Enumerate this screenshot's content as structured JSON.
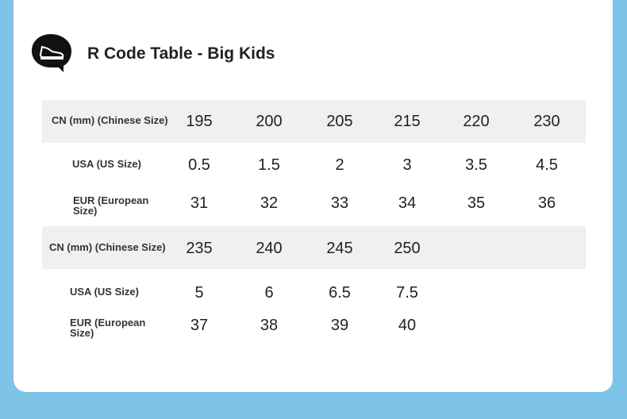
{
  "header": {
    "title": "R Code Table - Big Kids"
  },
  "table": {
    "blocks": [
      {
        "rows": [
          {
            "label": "CN (mm) (Chinese Size)",
            "cells": [
              195,
              200,
              205,
              215,
              220,
              230
            ]
          },
          {
            "label": "USA (US Size)",
            "cells": [
              0.5,
              1.5,
              2,
              3,
              3.5,
              4.5
            ]
          },
          {
            "label": "EUR (European Size)",
            "cells": [
              31,
              32,
              33,
              34,
              35,
              36
            ]
          }
        ]
      },
      {
        "rows": [
          {
            "label": "CN (mm) (Chinese Size)",
            "cells": [
              235,
              240,
              245,
              250
            ]
          },
          {
            "label": "USA (US Size)",
            "cells": [
              5,
              6,
              6.5,
              7.5
            ]
          },
          {
            "label": "EUR (European Size)",
            "cells": [
              37,
              38,
              39,
              40
            ]
          }
        ]
      }
    ]
  }
}
